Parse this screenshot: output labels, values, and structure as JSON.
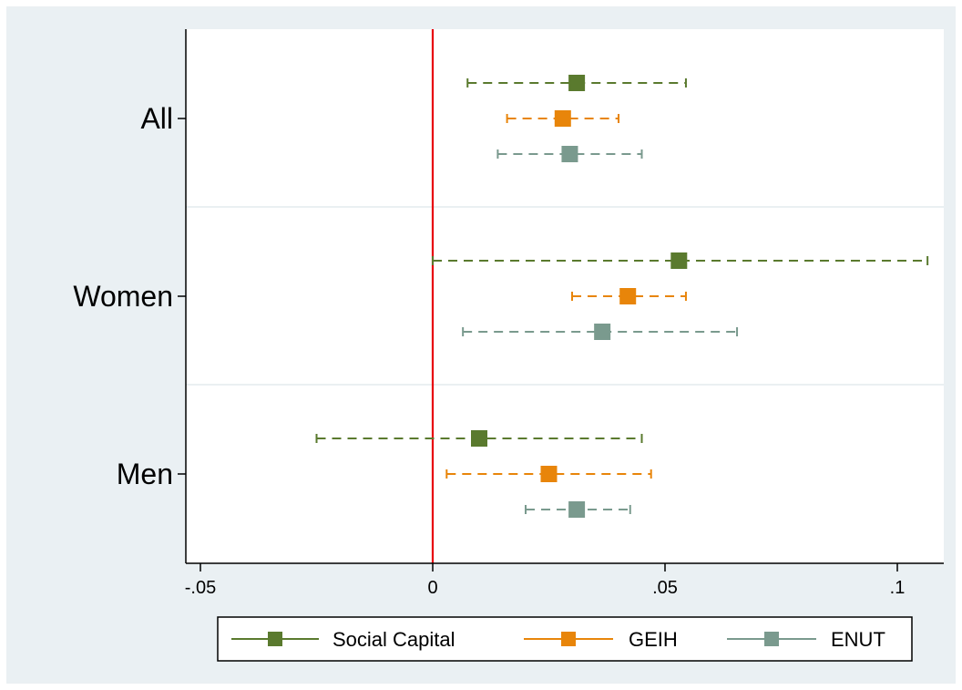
{
  "chart_data": {
    "type": "coefficient-plot",
    "title": "",
    "xlabel": "",
    "ylabel": "",
    "xlim": [
      -0.05,
      0.1
    ],
    "x_ticks": [
      {
        "value": -0.05,
        "label": "-.05"
      },
      {
        "value": 0,
        "label": "0"
      },
      {
        "value": 0.05,
        "label": ".05"
      },
      {
        "value": 0.1,
        "label": ".1"
      }
    ],
    "reference_line": {
      "x": 0,
      "color": "#e8000b"
    },
    "categories": [
      "All",
      "Women",
      "Men"
    ],
    "series": [
      {
        "name": "Social Capital",
        "color": "#5a7a2e",
        "estimates": [
          0.031,
          0.053,
          0.01
        ],
        "ci_low": [
          0.0075,
          0.0,
          -0.025
        ],
        "ci_high": [
          0.0545,
          0.1065,
          0.045
        ]
      },
      {
        "name": "GEIH",
        "color": "#e8850a",
        "estimates": [
          0.028,
          0.042,
          0.025
        ],
        "ci_low": [
          0.016,
          0.03,
          0.003
        ],
        "ci_high": [
          0.04,
          0.0545,
          0.047
        ]
      },
      {
        "name": "ENUT",
        "color": "#7a9a8e",
        "estimates": [
          0.0295,
          0.0365,
          0.031
        ],
        "ci_low": [
          0.014,
          0.0065,
          0.02
        ],
        "ci_high": [
          0.045,
          0.0655,
          0.0425
        ]
      }
    ],
    "grid": "horizontal-category-separators",
    "legend_position": "bottom"
  }
}
